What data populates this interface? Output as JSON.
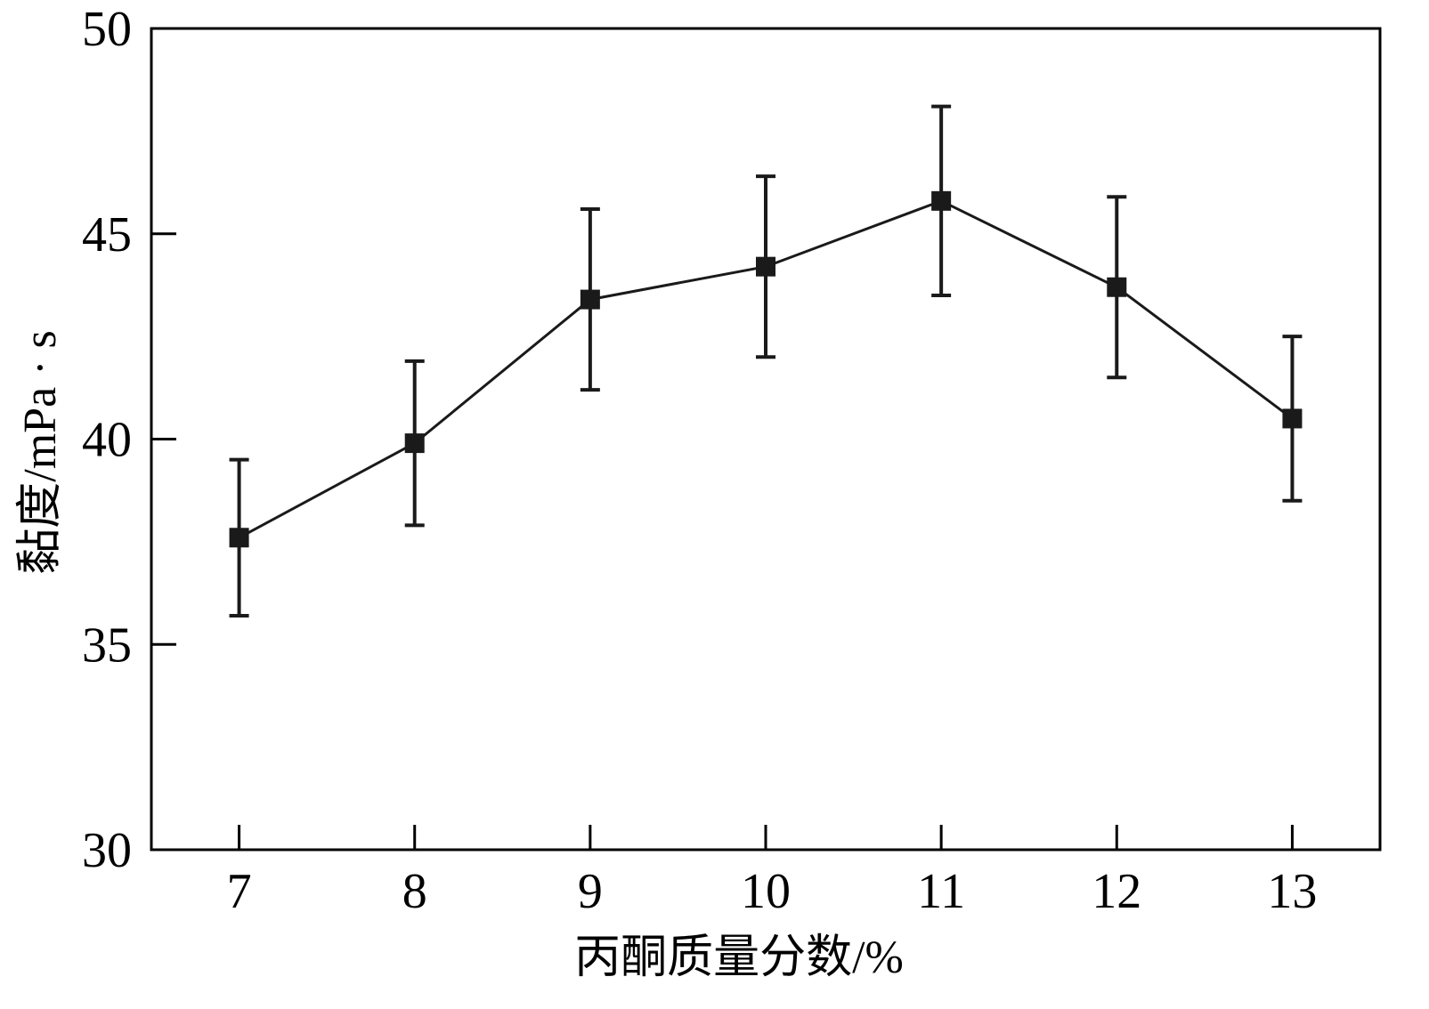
{
  "chart_data": {
    "type": "line",
    "title": "",
    "xlabel": "丙酮质量分数/%",
    "ylabel": "黏度/mPa · s",
    "xlim": [
      6.5,
      13.5
    ],
    "ylim": [
      30,
      50
    ],
    "x_ticks": [
      "7",
      "8",
      "9",
      "10",
      "11",
      "12",
      "13"
    ],
    "y_ticks": [
      "30",
      "35",
      "40",
      "45",
      "50"
    ],
    "grid": false,
    "legend": "none",
    "marker": "square",
    "colors": {
      "line": "#1a1a1a",
      "axis": "#000000"
    },
    "series": [
      {
        "x": [
          7,
          8,
          9,
          10,
          11,
          12,
          13
        ],
        "values": [
          37.6,
          39.9,
          43.4,
          44.2,
          45.8,
          43.7,
          40.5
        ],
        "err_low": [
          35.7,
          37.9,
          41.2,
          42.0,
          43.5,
          41.5,
          38.5
        ],
        "err_high": [
          39.5,
          41.9,
          45.6,
          46.4,
          48.1,
          45.9,
          42.5
        ]
      }
    ]
  }
}
